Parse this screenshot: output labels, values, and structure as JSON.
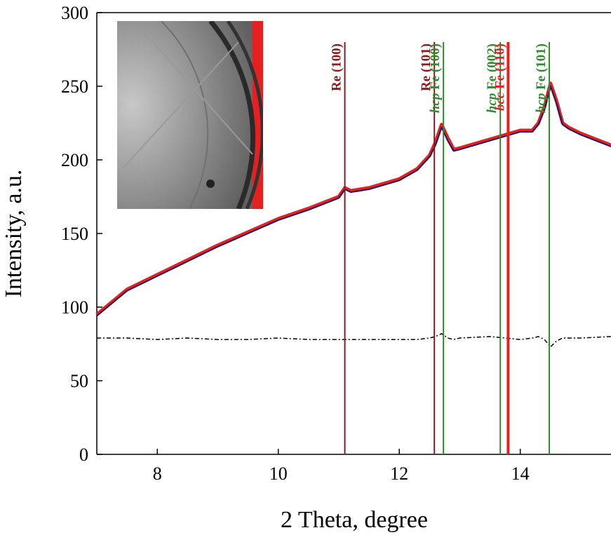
{
  "chart_data": {
    "type": "line",
    "y_label": "Intensity, a.u.",
    "x_label": "2 Theta, degree",
    "xlim": [
      7,
      15.5
    ],
    "ylim": [
      0,
      300
    ],
    "xticks": [
      8,
      10,
      12,
      14
    ],
    "yticks": [
      0,
      50,
      100,
      150,
      200,
      250,
      300
    ],
    "x": [
      7.0,
      7.5,
      8.0,
      8.5,
      9.0,
      9.5,
      10.0,
      10.5,
      11.0,
      11.1,
      11.2,
      11.5,
      12.0,
      12.3,
      12.5,
      12.6,
      12.7,
      12.8,
      12.9,
      13.0,
      13.5,
      14.0,
      14.2,
      14.3,
      14.4,
      14.5,
      14.6,
      14.7,
      14.8,
      15.0,
      15.5
    ],
    "series": [
      {
        "color": "#e52020",
        "width": 5,
        "values": [
          95,
          112,
          122,
          132,
          142,
          151,
          160,
          167,
          175,
          181,
          179,
          181,
          187,
          194,
          203,
          212,
          224,
          215,
          207,
          208,
          214,
          220,
          220,
          225,
          236,
          252,
          240,
          225,
          222,
          218,
          210
        ]
      },
      {
        "color": "#1a1a6e",
        "width": 2,
        "values": [
          94,
          111,
          121,
          131,
          141,
          150,
          159,
          166,
          174,
          180,
          178,
          180,
          186,
          193,
          202,
          210,
          222,
          213,
          206,
          207,
          213,
          219,
          219,
          224,
          234,
          250,
          238,
          224,
          221,
          217,
          209
        ]
      },
      {
        "color": "#000000",
        "width": 1.5,
        "dash": "6 3 2 3",
        "values": [
          79,
          79,
          78,
          79,
          78,
          78,
          79,
          78,
          78,
          78,
          78,
          78,
          78,
          78,
          79,
          80,
          82,
          79,
          78,
          79,
          80,
          78,
          79,
          80,
          78,
          73,
          77,
          79,
          79,
          79,
          80
        ]
      }
    ],
    "reflections": [
      {
        "x": 11.1,
        "label": "Re (100)",
        "color": "#8b1a1a"
      },
      {
        "x": 12.58,
        "label": "Re (101)",
        "color": "#8b1a1a"
      },
      {
        "x": 12.73,
        "phase": "hcp",
        "label": "Fe (100)",
        "color": "#2e8b2e"
      },
      {
        "x": 13.67,
        "phase": "hcp",
        "label": "Fe (002)",
        "color": "#2e8b2e"
      },
      {
        "x": 13.8,
        "phase": "bcc",
        "label": "Fe (110)",
        "color": "#e52020"
      },
      {
        "x": 14.48,
        "phase": "hcp",
        "label": "Fe (101)",
        "color": "#2e8b2e"
      }
    ]
  }
}
